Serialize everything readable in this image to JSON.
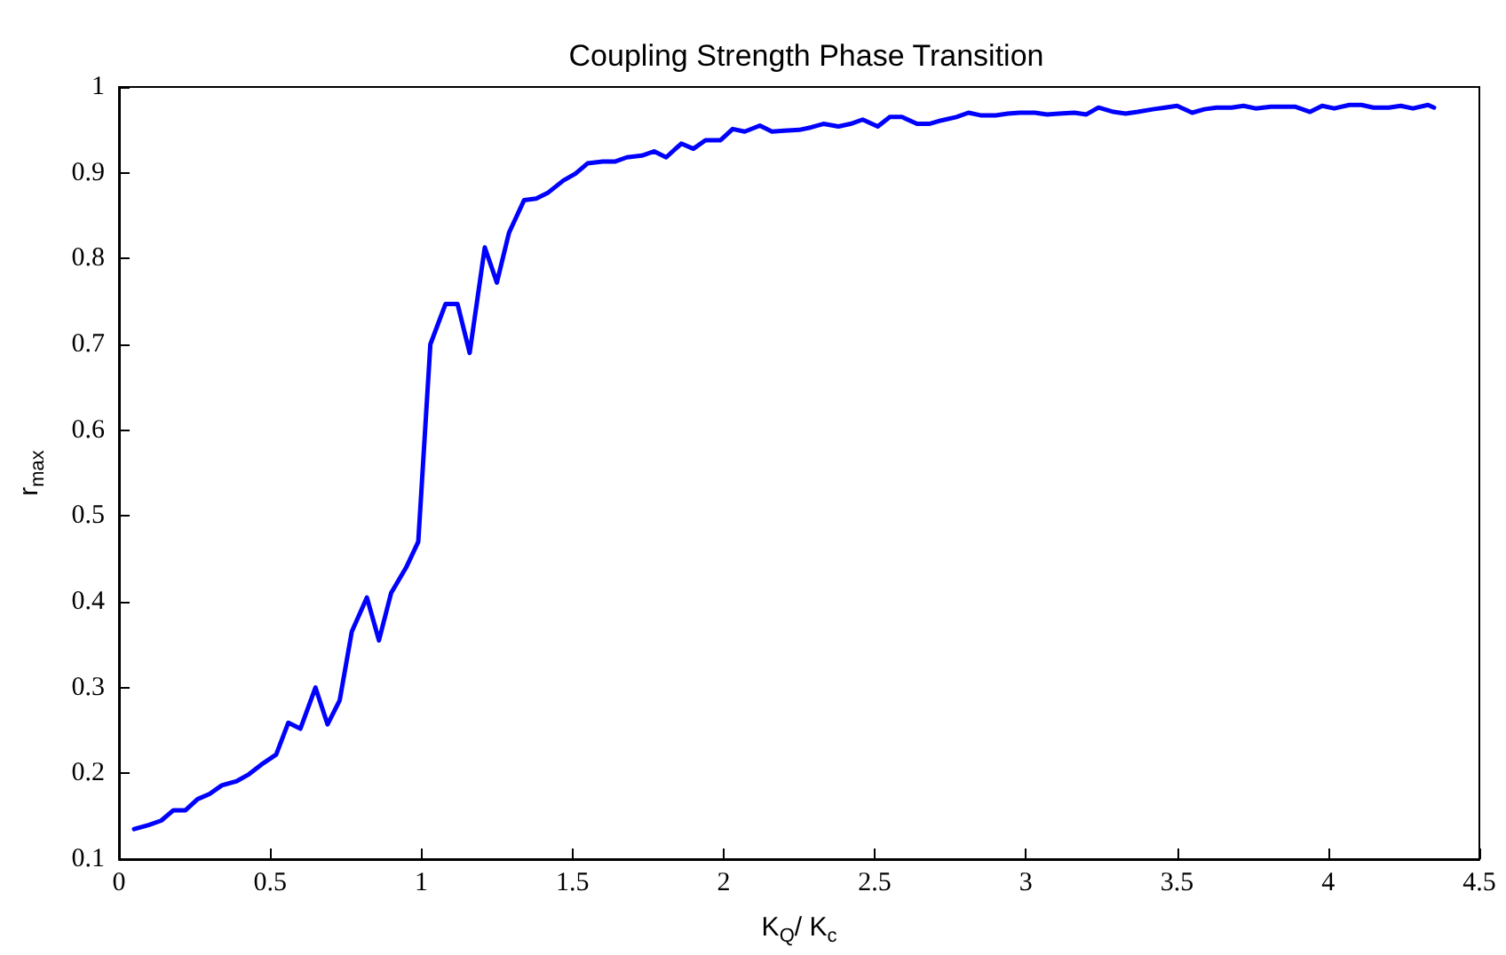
{
  "chart_data": {
    "type": "line",
    "title": "Coupling Strength Phase Transition",
    "xlabel": "K$_{Q}$/ K$_{c}$",
    "ylabel": "r$_{max}$",
    "x": [
      0.05,
      0.1,
      0.14,
      0.18,
      0.22,
      0.26,
      0.3,
      0.34,
      0.39,
      0.43,
      0.47,
      0.52,
      0.56,
      0.6,
      0.65,
      0.69,
      0.73,
      0.77,
      0.82,
      0.86,
      0.9,
      0.95,
      0.99,
      1.03,
      1.08,
      1.12,
      1.16,
      1.21,
      1.25,
      1.29,
      1.34,
      1.38,
      1.42,
      1.47,
      1.51,
      1.55,
      1.6,
      1.64,
      1.68,
      1.73,
      1.77,
      1.81,
      1.86,
      1.9,
      1.94,
      1.99,
      2.03,
      2.07,
      2.12,
      2.16,
      2.2,
      2.25,
      2.29,
      2.33,
      2.38,
      2.42,
      2.46,
      2.51,
      2.55,
      2.59,
      2.64,
      2.68,
      2.72,
      2.77,
      2.81,
      2.85,
      2.9,
      2.94,
      2.98,
      3.03,
      3.07,
      3.11,
      3.16,
      3.2,
      3.24,
      3.29,
      3.33,
      3.37,
      3.42,
      3.46,
      3.5,
      3.55,
      3.59,
      3.63,
      3.68,
      3.72,
      3.76,
      3.81,
      3.85,
      3.89,
      3.94,
      3.98,
      4.02,
      4.07,
      4.11,
      4.15,
      4.2,
      4.24,
      4.28,
      4.33,
      4.35
    ],
    "series": [
      {
        "color": "#0000ff",
        "values": [
          0.135,
          0.14,
          0.145,
          0.157,
          0.157,
          0.17,
          0.176,
          0.186,
          0.191,
          0.199,
          0.21,
          0.222,
          0.259,
          0.252,
          0.3,
          0.257,
          0.285,
          0.365,
          0.405,
          0.355,
          0.41,
          0.44,
          0.47,
          0.7,
          0.747,
          0.747,
          0.69,
          0.813,
          0.772,
          0.83,
          0.868,
          0.87,
          0.877,
          0.891,
          0.899,
          0.911,
          0.913,
          0.913,
          0.918,
          0.92,
          0.925,
          0.918,
          0.934,
          0.928,
          0.938,
          0.938,
          0.951,
          0.948,
          0.955,
          0.948,
          0.949,
          0.95,
          0.953,
          0.957,
          0.954,
          0.957,
          0.962,
          0.954,
          0.965,
          0.965,
          0.957,
          0.957,
          0.961,
          0.965,
          0.97,
          0.967,
          0.967,
          0.969,
          0.97,
          0.97,
          0.968,
          0.969,
          0.97,
          0.968,
          0.976,
          0.971,
          0.969,
          0.971,
          0.974,
          0.976,
          0.978,
          0.97,
          0.974,
          0.976,
          0.976,
          0.978,
          0.975,
          0.977,
          0.977,
          0.977,
          0.971,
          0.978,
          0.975,
          0.979,
          0.979,
          0.976,
          0.976,
          0.978,
          0.975,
          0.979,
          0.976
        ]
      }
    ],
    "xlim": [
      0,
      4.5
    ],
    "xticks": [
      0,
      0.5,
      1,
      1.5,
      2,
      2.5,
      3,
      3.5,
      4,
      4.5
    ],
    "ylim": [
      0.1,
      1
    ],
    "yticks": [
      0.1,
      0.2,
      0.3,
      0.4,
      0.5,
      0.6,
      0.7,
      0.8,
      0.9,
      1
    ],
    "grid": false,
    "marker": "none",
    "line_style": "solid"
  }
}
